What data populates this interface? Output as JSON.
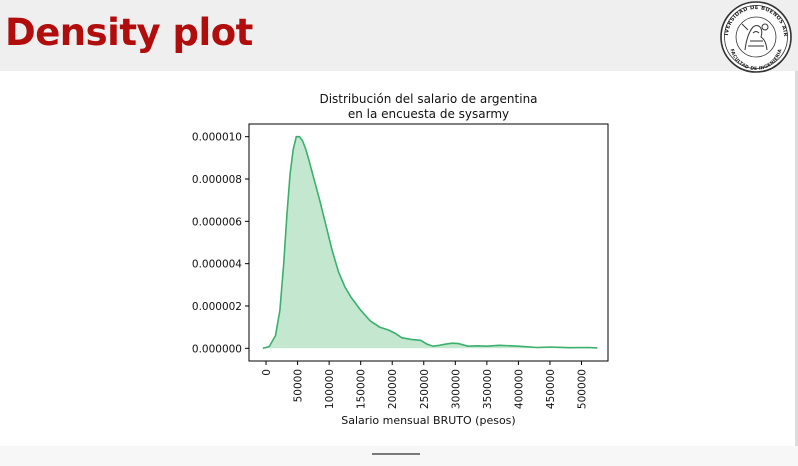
{
  "page": {
    "title": "Density plot"
  },
  "logo": {
    "text": "UNIVERSIDAD DE BUENOS AIRES · FACULTAD DE INGENIERIA",
    "icon": "uba-seal"
  },
  "colors": {
    "title": "#b20d0d",
    "line": "#3bb06d",
    "fill": "#c3e8cf"
  },
  "chart_data": {
    "type": "area",
    "title": "Distribución del salario de argentina\nen la encuesta de sysarmy",
    "xlabel": "Salario mensual BRUTO (pesos)",
    "ylabel": "",
    "xlim": [
      -27000,
      542000
    ],
    "ylim": [
      -6e-07,
      1.06e-05
    ],
    "xticks": [
      0,
      50000,
      100000,
      150000,
      200000,
      250000,
      300000,
      350000,
      400000,
      450000,
      500000
    ],
    "xtick_labels": [
      "0",
      "50000",
      "100000",
      "150000",
      "200000",
      "250000",
      "300000",
      "350000",
      "400000",
      "450000",
      "500000"
    ],
    "yticks": [
      0,
      2e-06,
      4e-06,
      6e-06,
      8e-06,
      1e-05
    ],
    "ytick_labels": [
      "0.000000",
      "0.000002",
      "0.000004",
      "0.000006",
      "0.000008",
      "0.000010"
    ],
    "grid": false,
    "series": [
      {
        "x": [
          -5000,
          5000,
          15000,
          22000,
          28000,
          33000,
          38000,
          43000,
          48000,
          53000,
          58000,
          63000,
          68000,
          75000,
          85000,
          95000,
          105000,
          115000,
          125000,
          135000,
          150000,
          165000,
          180000,
          195000,
          205000,
          215000,
          230000,
          245000,
          255000,
          265000,
          275000,
          285000,
          295000,
          305000,
          320000,
          335000,
          350000,
          370000,
          400000,
          430000,
          450000,
          480000,
          510000,
          525000
        ],
        "y": [
          0.0,
          8e-08,
          6e-07,
          1.8e-06,
          4e-06,
          6.3e-06,
          8.2e-06,
          9.4e-06,
          1e-05,
          1e-05,
          9.8e-06,
          9.4e-06,
          8.9e-06,
          8.1e-06,
          7e-06,
          5.8e-06,
          4.6e-06,
          3.6e-06,
          2.9e-06,
          2.4e-06,
          1.8e-06,
          1.3e-06,
          1e-06,
          8.5e-07,
          7e-07,
          5e-07,
          4.2e-07,
          3.8e-07,
          2e-07,
          1e-07,
          1.4e-07,
          2e-07,
          2.4e-07,
          2.2e-07,
          1e-07,
          1.2e-07,
          1e-07,
          1.4e-07,
          1e-07,
          4e-08,
          6e-08,
          3e-08,
          4e-08,
          2e-08
        ]
      }
    ]
  }
}
